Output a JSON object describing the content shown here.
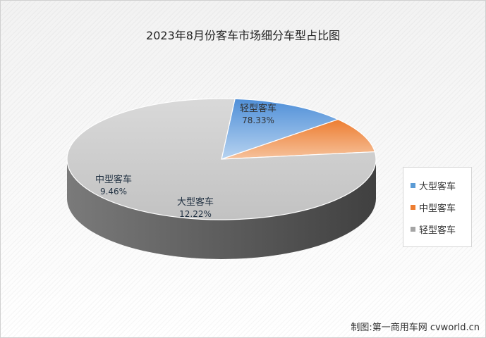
{
  "chart_data": {
    "type": "pie",
    "title": "2023年8月份客车市场细分车型占比图",
    "categories": [
      "大型客车",
      "中型客车",
      "轻型客车"
    ],
    "values": [
      12.22,
      9.46,
      78.33
    ],
    "value_labels": [
      "12.22%",
      "9.46%",
      "78.33%"
    ],
    "colors": [
      "#5b9bd5",
      "#ed7d31",
      "#a5a5a5"
    ],
    "legend_position": "right",
    "style": "3d"
  },
  "source": "制图:第一商用车网 cvworld.cn"
}
